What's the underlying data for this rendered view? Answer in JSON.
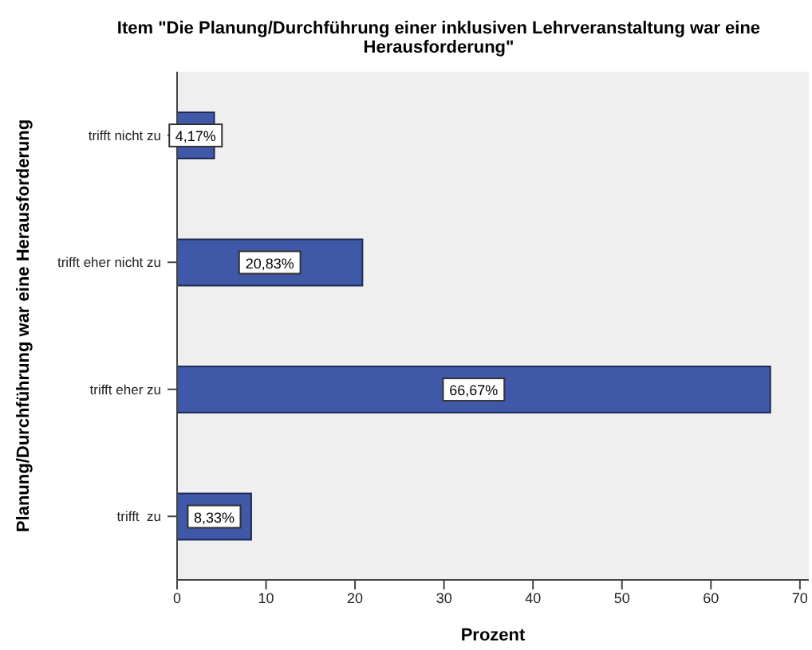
{
  "chart_data": {
    "type": "bar",
    "orientation": "horizontal",
    "title": "Item \"Die Planung/Durchführung einer inklusiven Lehrveranstaltung war eine Herausforderung\"",
    "xlabel": "Prozent",
    "ylabel": "Planung/Durchführung war eine Herausforderung",
    "categories": [
      "trifft nicht zu",
      "trifft eher nicht zu",
      "trifft eher zu",
      "trifft  zu"
    ],
    "values": [
      4.17,
      20.83,
      66.67,
      8.33
    ],
    "value_labels": [
      "4,17%",
      "20,83%",
      "66,67%",
      "8,33%"
    ],
    "color": "#3f58a8",
    "xlim": [
      0,
      71
    ],
    "xticks": [
      0,
      10,
      20,
      30,
      40,
      50,
      60,
      70
    ],
    "grid": false
  }
}
